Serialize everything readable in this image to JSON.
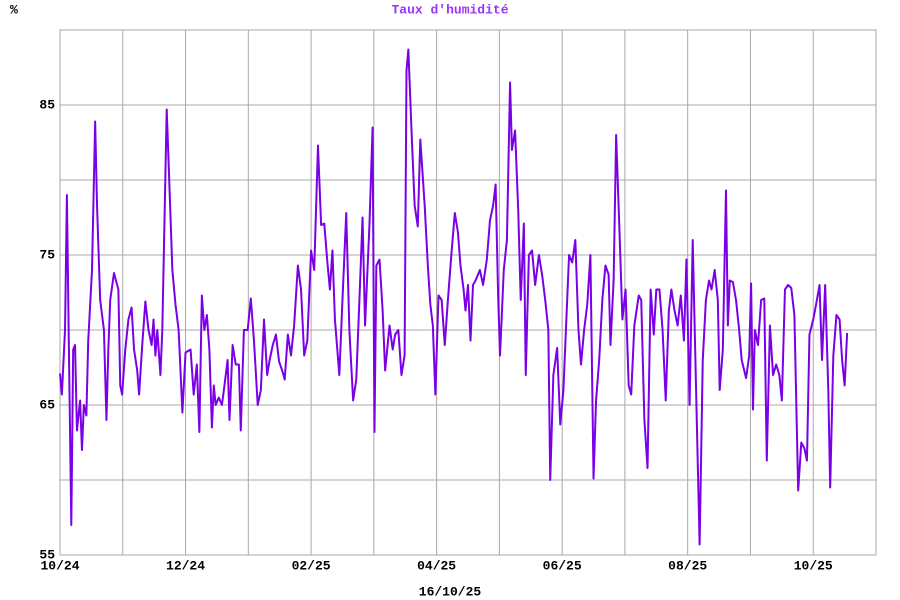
{
  "chart_data": {
    "type": "line",
    "title": "Taux d'humidité",
    "y_unit": "%",
    "x_label": "16/10/25",
    "color": "#7a00e6",
    "title_color": "#9933ff",
    "grid": true,
    "xlim": [
      0,
      13
    ],
    "ylim": [
      55,
      90
    ],
    "xticks": [
      {
        "value": 0,
        "label": "10/24"
      },
      {
        "value": 2,
        "label": "12/24"
      },
      {
        "value": 4,
        "label": "02/25"
      },
      {
        "value": 6,
        "label": "04/25"
      },
      {
        "value": 8,
        "label": "06/25"
      },
      {
        "value": 10,
        "label": "08/25"
      },
      {
        "value": 12,
        "label": "10/25"
      }
    ],
    "x_minor_grid": [
      1,
      3,
      5,
      7,
      9,
      11
    ],
    "yticks": [
      55,
      65,
      75,
      85
    ],
    "y_minor_grid": [
      60,
      70,
      80
    ],
    "x": [
      0,
      0.03,
      0.08,
      0.11,
      0.14,
      0.18,
      0.21,
      0.24,
      0.27,
      0.32,
      0.35,
      0.38,
      0.42,
      0.45,
      0.51,
      0.56,
      0.59,
      0.64,
      0.7,
      0.74,
      0.77,
      0.8,
      0.86,
      0.93,
      0.96,
      0.99,
      1.04,
      1.09,
      1.14,
      1.18,
      1.23,
      1.26,
      1.31,
      1.36,
      1.41,
      1.46,
      1.49,
      1.52,
      1.55,
      1.6,
      1.63,
      1.7,
      1.74,
      1.79,
      1.84,
      1.89,
      1.95,
      2.0,
      2.08,
      2.13,
      2.18,
      2.22,
      2.26,
      2.3,
      2.34,
      2.38,
      2.42,
      2.45,
      2.48,
      2.53,
      2.58,
      2.62,
      2.67,
      2.7,
      2.75,
      2.8,
      2.85,
      2.88,
      2.93,
      2.99,
      3.04,
      3.09,
      3.15,
      3.2,
      3.25,
      3.3,
      3.34,
      3.39,
      3.44,
      3.49,
      3.54,
      3.58,
      3.63,
      3.68,
      3.73,
      3.79,
      3.84,
      3.89,
      3.94,
      4.0,
      4.05,
      4.11,
      4.16,
      4.21,
      4.26,
      4.3,
      4.34,
      4.38,
      4.45,
      4.5,
      4.56,
      4.61,
      4.67,
      4.72,
      4.77,
      4.82,
      4.86,
      4.93,
      4.98,
      5.01,
      5.04,
      5.09,
      5.14,
      5.18,
      5.25,
      5.3,
      5.34,
      5.39,
      5.44,
      5.49,
      5.52,
      5.55,
      5.6,
      5.65,
      5.7,
      5.74,
      5.81,
      5.86,
      5.9,
      5.94,
      5.98,
      6.03,
      6.08,
      6.13,
      6.18,
      6.24,
      6.29,
      6.34,
      6.38,
      6.43,
      6.46,
      6.5,
      6.54,
      6.58,
      6.62,
      6.69,
      6.74,
      6.8,
      6.85,
      6.9,
      6.94,
      6.98,
      7.01,
      7.07,
      7.12,
      7.17,
      7.2,
      7.25,
      7.3,
      7.34,
      7.39,
      7.42,
      7.47,
      7.52,
      7.57,
      7.63,
      7.68,
      7.73,
      7.78,
      7.81,
      7.86,
      7.92,
      7.97,
      8.02,
      8.06,
      8.11,
      8.16,
      8.21,
      8.26,
      8.3,
      8.35,
      8.4,
      8.45,
      8.5,
      8.54,
      8.59,
      8.64,
      8.69,
      8.74,
      8.77,
      8.82,
      8.86,
      8.91,
      8.96,
      9.01,
      9.06,
      9.1,
      9.15,
      9.22,
      9.26,
      9.31,
      9.36,
      9.41,
      9.46,
      9.5,
      9.55,
      9.6,
      9.65,
      9.7,
      9.74,
      9.79,
      9.84,
      9.89,
      9.94,
      9.98,
      10.03,
      10.08,
      10.13,
      10.19,
      10.24,
      10.29,
      10.34,
      10.38,
      10.43,
      10.48,
      10.51,
      10.56,
      10.61,
      10.64,
      10.67,
      10.72,
      10.77,
      10.82,
      10.86,
      10.93,
      10.98,
      11.01,
      11.04,
      11.07,
      11.12,
      11.17,
      11.22,
      11.26,
      11.31,
      11.36,
      11.41,
      11.46,
      11.5,
      11.55,
      11.6,
      11.65,
      11.7,
      11.76,
      11.81,
      11.86,
      11.9,
      11.94,
      12.0,
      12.05,
      12.1,
      12.14,
      12.19,
      12.24,
      12.27,
      12.32,
      12.37,
      12.42,
      12.46,
      12.5,
      12.54
    ],
    "values": [
      67.1,
      65.7,
      70,
      79,
      69.3,
      57,
      68.7,
      69,
      63.3,
      65.3,
      62,
      65,
      64.3,
      69.3,
      74,
      83.9,
      78.3,
      72,
      70,
      64,
      68.7,
      72,
      73.8,
      72.7,
      66.3,
      65.7,
      68.7,
      70.7,
      71.5,
      68.7,
      67.3,
      65.7,
      69,
      71.9,
      70,
      69,
      70.7,
      68.3,
      70,
      67,
      70,
      84.7,
      80,
      74,
      71.7,
      70,
      64.5,
      68.5,
      68.7,
      65.7,
      67.7,
      63.2,
      72.3,
      70,
      71,
      68.7,
      63.5,
      66.3,
      65,
      65.5,
      65,
      66.3,
      68,
      64,
      69,
      67.7,
      67.7,
      63.3,
      70,
      70,
      72.1,
      69.3,
      65,
      66,
      70.7,
      67,
      68,
      69,
      69.7,
      67.9,
      67.3,
      66.7,
      69.7,
      68.3,
      70.3,
      74.3,
      72.7,
      68.3,
      69.3,
      75.3,
      74,
      82.3,
      77,
      77.1,
      74.5,
      72.7,
      75.3,
      70.7,
      67,
      72,
      77.8,
      70,
      65.3,
      66.7,
      72,
      77.5,
      70.3,
      77,
      83.5,
      63.2,
      74.3,
      74.7,
      71.3,
      67.3,
      70.3,
      68.7,
      69.7,
      70,
      67,
      68.3,
      87.3,
      88.7,
      83.3,
      78.3,
      76.9,
      82.7,
      78.3,
      74.3,
      71.7,
      70.3,
      65.7,
      72.3,
      72,
      69,
      72,
      75.3,
      77.8,
      76.5,
      74.3,
      72.7,
      71.3,
      73,
      69.3,
      73,
      73.3,
      74,
      73,
      74.7,
      77.3,
      78.3,
      79.7,
      72.3,
      68.3,
      74,
      76,
      86.5,
      82,
      83.3,
      78,
      72,
      77.1,
      67,
      75,
      75.3,
      73,
      75,
      73.7,
      72,
      70,
      60,
      67,
      68.8,
      63.7,
      66,
      70,
      75,
      74.5,
      76,
      70,
      67.7,
      70,
      71.7,
      75,
      60.1,
      65.3,
      68,
      72,
      74.3,
      73.7,
      69,
      73.3,
      83,
      77,
      70.7,
      72.7,
      66.3,
      65.7,
      70.3,
      72.3,
      72,
      64,
      60.8,
      72.7,
      69.7,
      72.7,
      72.7,
      70,
      65.3,
      71.3,
      72.7,
      71.3,
      70.3,
      72.3,
      69.3,
      74.7,
      65,
      76,
      66.7,
      55.7,
      68,
      72,
      73.3,
      72.7,
      74,
      72,
      66,
      68.7,
      79.3,
      70.3,
      73.3,
      73.2,
      72,
      70,
      68,
      66.8,
      68.3,
      73.1,
      64.7,
      70,
      69,
      72,
      72.1,
      61.3,
      70.3,
      67,
      67.7,
      67,
      65.3,
      72.7,
      73,
      72.8,
      71,
      59.3,
      62.5,
      62.1,
      61.3,
      69.7,
      70.7,
      71.8,
      73,
      68,
      73,
      66,
      59.5,
      68.3,
      71,
      70.7,
      68,
      66.3,
      69.8
    ]
  }
}
